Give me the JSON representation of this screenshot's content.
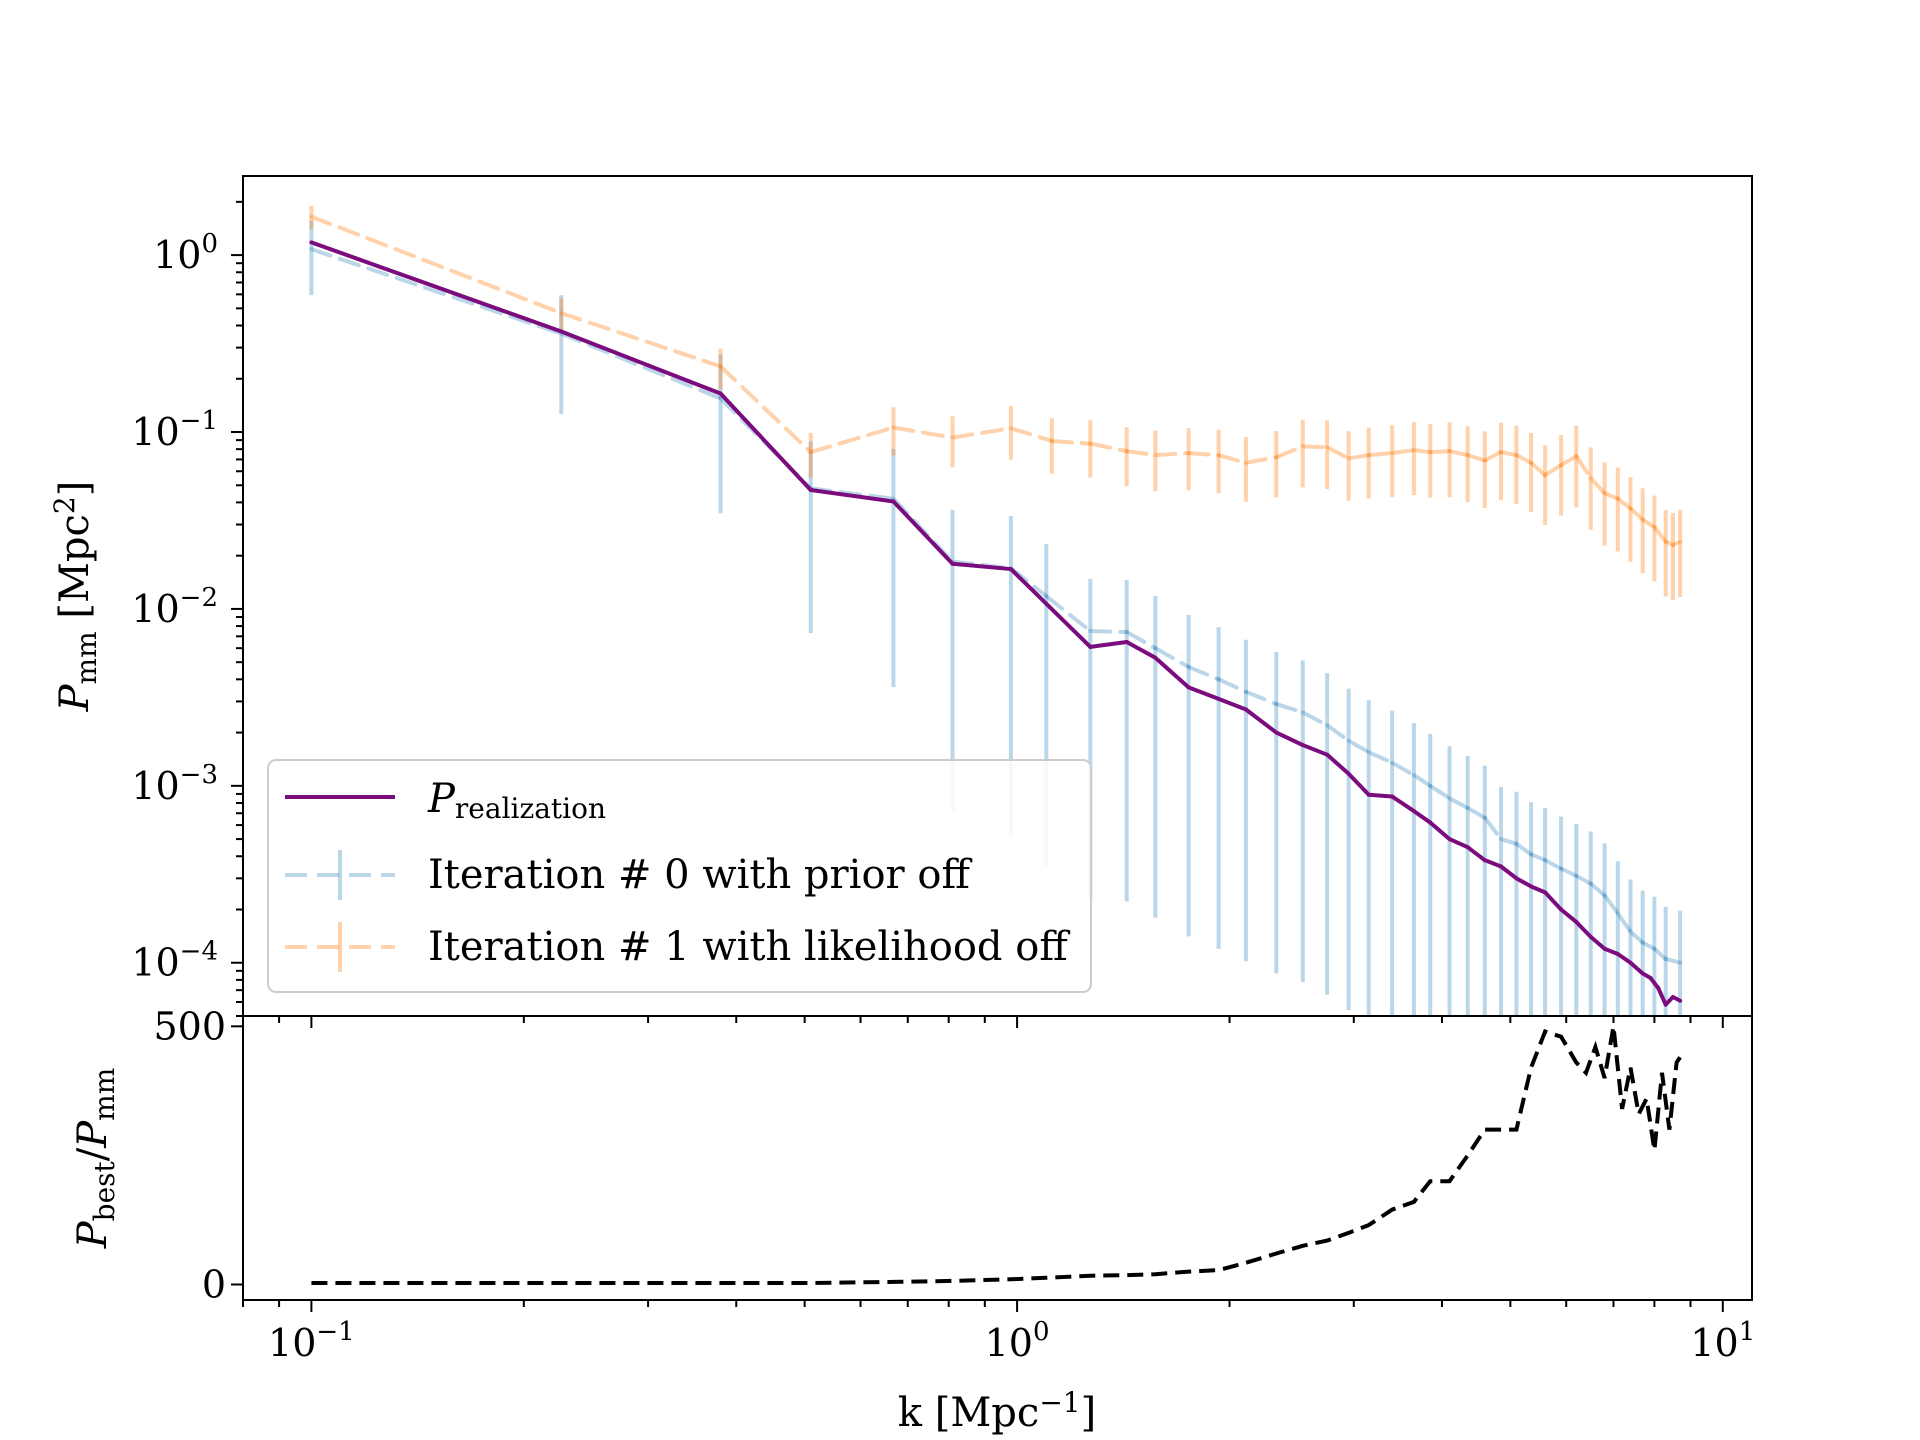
{
  "chart_data": [
    {
      "type": "line",
      "panel": "top",
      "xscale": "log",
      "yscale": "log",
      "xlim": [
        0.08,
        11
      ],
      "ylim": [
        5e-05,
        2.8
      ],
      "ylabel": {
        "base": "P",
        "sub": "mm",
        "unit": " [Mpc",
        "sup": "2",
        "close": "]"
      },
      "yticks": [
        {
          "value": 1,
          "base": "10",
          "exp": "0"
        },
        {
          "value": 0.1,
          "base": "10",
          "exp": "−1"
        },
        {
          "value": 0.01,
          "base": "10",
          "exp": "−2"
        },
        {
          "value": 0.001,
          "base": "10",
          "exp": "−3"
        },
        {
          "value": 0.0001,
          "base": "10",
          "exp": "−4"
        }
      ],
      "legend": {
        "placement": "lower-left",
        "entries": [
          {
            "italic": "P",
            "sub": "realization",
            "text": ""
          },
          {
            "italic": "",
            "sub": "",
            "text": "Iteration # 0 with prior off"
          },
          {
            "italic": "",
            "sub": "",
            "text": "Iteration # 1 with likelihood off"
          }
        ]
      },
      "series": [
        {
          "name": "P_realization",
          "color": "#7b0c7e",
          "style": "solid",
          "x": [
            0.1,
            0.226,
            0.38,
            0.51,
            0.668,
            0.81,
            0.98,
            1.27,
            1.43,
            1.57,
            1.75,
            1.93,
            2.11,
            2.33,
            2.54,
            2.75,
            2.95,
            3.15,
            3.4,
            3.65,
            3.85,
            4.1,
            4.35,
            4.6,
            4.85,
            5.1,
            5.35,
            5.6,
            5.9,
            6.2,
            6.5,
            6.8,
            7.1,
            7.4,
            7.7,
            7.9,
            8.1,
            8.3,
            8.5,
            8.7
          ],
          "y": [
            1.18,
            0.37,
            0.165,
            0.047,
            0.0405,
            0.018,
            0.0168,
            0.0061,
            0.0065,
            0.0053,
            0.0036,
            0.0031,
            0.0027,
            0.002,
            0.0017,
            0.0015,
            0.00117,
            0.00089,
            0.00087,
            0.00072,
            0.00062,
            0.0005,
            0.00045,
            0.00038,
            0.00035,
            0.0003,
            0.00027,
            0.00025,
            0.0002,
            0.00017,
            0.00014,
            0.00012,
            0.000112,
            0.0001,
            8.7e-05,
            8.2e-05,
            7.2e-05,
            5.8e-05,
            6.4e-05,
            6.1e-05
          ]
        },
        {
          "name": "Iteration # 0 with prior off",
          "color": "#1f77b4",
          "opacity": 0.3,
          "style": "dashed",
          "x": [
            0.1,
            0.226,
            0.38,
            0.51,
            0.668,
            0.81,
            0.98,
            1.1,
            1.27,
            1.43,
            1.57,
            1.75,
            1.93,
            2.11,
            2.33,
            2.54,
            2.75,
            2.95,
            3.15,
            3.4,
            3.65,
            3.85,
            4.1,
            4.35,
            4.6,
            4.85,
            5.1,
            5.35,
            5.6,
            5.9,
            6.2,
            6.5,
            6.8,
            7.1,
            7.4,
            7.7,
            8.0,
            8.3,
            8.7
          ],
          "y": [
            1.08,
            0.36,
            0.155,
            0.048,
            0.042,
            0.0185,
            0.017,
            0.0118,
            0.0075,
            0.0074,
            0.006,
            0.0047,
            0.004,
            0.0034,
            0.0029,
            0.0026,
            0.0022,
            0.0018,
            0.00155,
            0.00135,
            0.00115,
            0.001,
            0.00085,
            0.00075,
            0.00066,
            0.0005,
            0.00047,
            0.00041,
            0.00038,
            0.00034,
            0.00031,
            0.00028,
            0.00024,
            0.00019,
            0.00015,
            0.00013,
            0.00012,
            0.000105,
            0.0001
          ],
          "err_rel": 0.45
        },
        {
          "name": "Iteration # 1 with likelihood off",
          "color": "#ff7f0e",
          "opacity": 0.35,
          "style": "dashed",
          "x": [
            0.1,
            0.226,
            0.38,
            0.51,
            0.668,
            0.81,
            0.98,
            1.12,
            1.27,
            1.43,
            1.57,
            1.75,
            1.93,
            2.11,
            2.33,
            2.54,
            2.75,
            2.95,
            3.15,
            3.4,
            3.65,
            3.85,
            4.1,
            4.35,
            4.6,
            4.85,
            5.1,
            5.35,
            5.6,
            5.9,
            6.2,
            6.5,
            6.8,
            7.1,
            7.4,
            7.7,
            8.0,
            8.3,
            8.5,
            8.7
          ],
          "y": [
            1.65,
            0.47,
            0.235,
            0.077,
            0.106,
            0.093,
            0.105,
            0.089,
            0.086,
            0.078,
            0.074,
            0.076,
            0.074,
            0.067,
            0.072,
            0.083,
            0.082,
            0.071,
            0.074,
            0.076,
            0.079,
            0.077,
            0.078,
            0.074,
            0.069,
            0.077,
            0.074,
            0.067,
            0.057,
            0.065,
            0.073,
            0.055,
            0.045,
            0.042,
            0.037,
            0.032,
            0.029,
            0.024,
            0.023,
            0.024
          ],
          "err_rel": 0.15
        }
      ]
    },
    {
      "type": "line",
      "panel": "bottom",
      "xscale": "log",
      "xlim": [
        0.08,
        11
      ],
      "ylim": [
        -30,
        520
      ],
      "xlabel": {
        "text": "k [Mpc",
        "sup": "−1",
        "close": "]"
      },
      "ylabel": {
        "base": "P",
        "sub1": "best",
        "mid": "/",
        "base2": "P",
        "sub2": "mm"
      },
      "yticks": [
        {
          "value": 0,
          "text": "0"
        },
        {
          "value": 500,
          "text": "500"
        }
      ],
      "xticks": [
        {
          "value": 0.1,
          "base": "10",
          "exp": "−1"
        },
        {
          "value": 1,
          "base": "10",
          "exp": "0"
        },
        {
          "value": 10,
          "base": "10",
          "exp": "1"
        }
      ],
      "series": [
        {
          "name": "P_best/P_mm",
          "color": "#000000",
          "style": "dashed",
          "x": [
            0.1,
            0.226,
            0.38,
            0.51,
            0.668,
            0.81,
            0.98,
            1.1,
            1.27,
            1.43,
            1.57,
            1.75,
            1.93,
            2.11,
            2.33,
            2.54,
            2.75,
            2.95,
            3.15,
            3.4,
            3.65,
            3.85,
            4.1,
            4.35,
            4.6,
            4.85,
            5.1,
            5.35,
            5.6,
            5.9,
            6.2,
            6.4,
            6.6,
            6.8,
            7.0,
            7.2,
            7.4,
            7.6,
            7.8,
            8.0,
            8.2,
            8.4,
            8.6,
            8.7
          ],
          "y": [
            3,
            3,
            3,
            3,
            5,
            7,
            10,
            13,
            17,
            18,
            20,
            25,
            28,
            42,
            60,
            75,
            85,
            100,
            115,
            145,
            160,
            200,
            200,
            250,
            300,
            300,
            300,
            420,
            490,
            480,
            430,
            410,
            460,
            400,
            500,
            340,
            420,
            330,
            360,
            260,
            410,
            300,
            430,
            440
          ]
        }
      ]
    }
  ]
}
